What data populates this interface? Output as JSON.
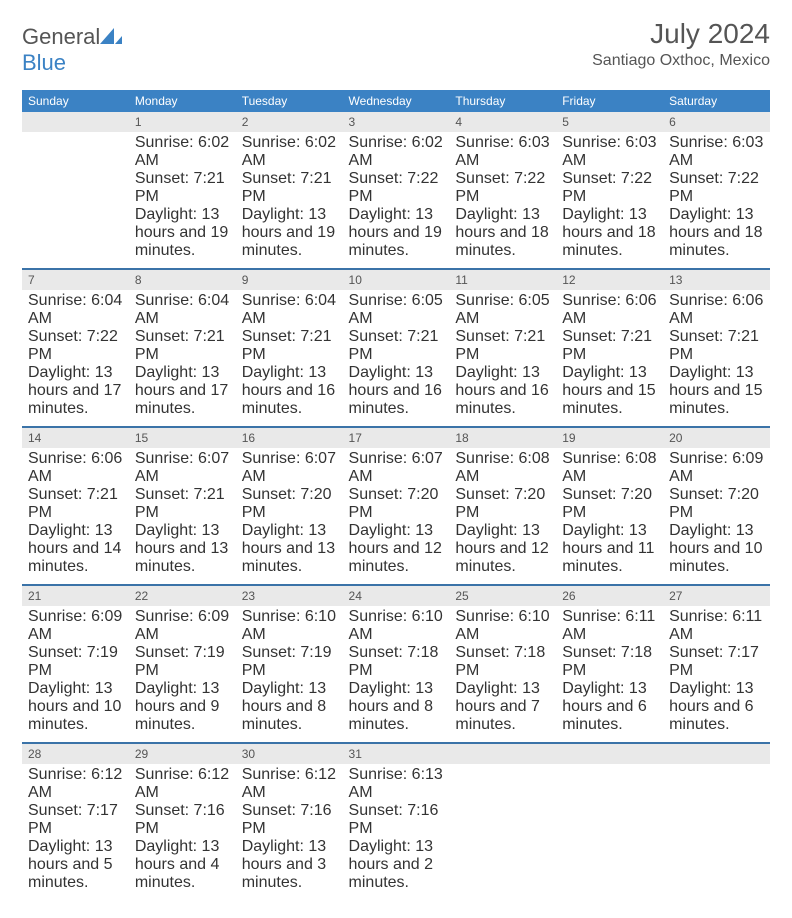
{
  "brand": {
    "name_a": "General",
    "name_b": "Blue"
  },
  "title": "July 2024",
  "location": "Santiago Oxthoc, Mexico",
  "colors": {
    "header_bg": "#3b82c4",
    "row_border": "#3b73a8",
    "daynum_bg": "#e9e9e9",
    "text": "#444"
  },
  "dow": [
    "Sunday",
    "Monday",
    "Tuesday",
    "Wednesday",
    "Thursday",
    "Friday",
    "Saturday"
  ],
  "weeks": [
    [
      null,
      {
        "n": "1",
        "sr": "6:02 AM",
        "ss": "7:21 PM",
        "dl": "13 hours and 19 minutes."
      },
      {
        "n": "2",
        "sr": "6:02 AM",
        "ss": "7:21 PM",
        "dl": "13 hours and 19 minutes."
      },
      {
        "n": "3",
        "sr": "6:02 AM",
        "ss": "7:22 PM",
        "dl": "13 hours and 19 minutes."
      },
      {
        "n": "4",
        "sr": "6:03 AM",
        "ss": "7:22 PM",
        "dl": "13 hours and 18 minutes."
      },
      {
        "n": "5",
        "sr": "6:03 AM",
        "ss": "7:22 PM",
        "dl": "13 hours and 18 minutes."
      },
      {
        "n": "6",
        "sr": "6:03 AM",
        "ss": "7:22 PM",
        "dl": "13 hours and 18 minutes."
      }
    ],
    [
      {
        "n": "7",
        "sr": "6:04 AM",
        "ss": "7:22 PM",
        "dl": "13 hours and 17 minutes."
      },
      {
        "n": "8",
        "sr": "6:04 AM",
        "ss": "7:21 PM",
        "dl": "13 hours and 17 minutes."
      },
      {
        "n": "9",
        "sr": "6:04 AM",
        "ss": "7:21 PM",
        "dl": "13 hours and 16 minutes."
      },
      {
        "n": "10",
        "sr": "6:05 AM",
        "ss": "7:21 PM",
        "dl": "13 hours and 16 minutes."
      },
      {
        "n": "11",
        "sr": "6:05 AM",
        "ss": "7:21 PM",
        "dl": "13 hours and 16 minutes."
      },
      {
        "n": "12",
        "sr": "6:06 AM",
        "ss": "7:21 PM",
        "dl": "13 hours and 15 minutes."
      },
      {
        "n": "13",
        "sr": "6:06 AM",
        "ss": "7:21 PM",
        "dl": "13 hours and 15 minutes."
      }
    ],
    [
      {
        "n": "14",
        "sr": "6:06 AM",
        "ss": "7:21 PM",
        "dl": "13 hours and 14 minutes."
      },
      {
        "n": "15",
        "sr": "6:07 AM",
        "ss": "7:21 PM",
        "dl": "13 hours and 13 minutes."
      },
      {
        "n": "16",
        "sr": "6:07 AM",
        "ss": "7:20 PM",
        "dl": "13 hours and 13 minutes."
      },
      {
        "n": "17",
        "sr": "6:07 AM",
        "ss": "7:20 PM",
        "dl": "13 hours and 12 minutes."
      },
      {
        "n": "18",
        "sr": "6:08 AM",
        "ss": "7:20 PM",
        "dl": "13 hours and 12 minutes."
      },
      {
        "n": "19",
        "sr": "6:08 AM",
        "ss": "7:20 PM",
        "dl": "13 hours and 11 minutes."
      },
      {
        "n": "20",
        "sr": "6:09 AM",
        "ss": "7:20 PM",
        "dl": "13 hours and 10 minutes."
      }
    ],
    [
      {
        "n": "21",
        "sr": "6:09 AM",
        "ss": "7:19 PM",
        "dl": "13 hours and 10 minutes."
      },
      {
        "n": "22",
        "sr": "6:09 AM",
        "ss": "7:19 PM",
        "dl": "13 hours and 9 minutes."
      },
      {
        "n": "23",
        "sr": "6:10 AM",
        "ss": "7:19 PM",
        "dl": "13 hours and 8 minutes."
      },
      {
        "n": "24",
        "sr": "6:10 AM",
        "ss": "7:18 PM",
        "dl": "13 hours and 8 minutes."
      },
      {
        "n": "25",
        "sr": "6:10 AM",
        "ss": "7:18 PM",
        "dl": "13 hours and 7 minutes."
      },
      {
        "n": "26",
        "sr": "6:11 AM",
        "ss": "7:18 PM",
        "dl": "13 hours and 6 minutes."
      },
      {
        "n": "27",
        "sr": "6:11 AM",
        "ss": "7:17 PM",
        "dl": "13 hours and 6 minutes."
      }
    ],
    [
      {
        "n": "28",
        "sr": "6:12 AM",
        "ss": "7:17 PM",
        "dl": "13 hours and 5 minutes."
      },
      {
        "n": "29",
        "sr": "6:12 AM",
        "ss": "7:16 PM",
        "dl": "13 hours and 4 minutes."
      },
      {
        "n": "30",
        "sr": "6:12 AM",
        "ss": "7:16 PM",
        "dl": "13 hours and 3 minutes."
      },
      {
        "n": "31",
        "sr": "6:13 AM",
        "ss": "7:16 PM",
        "dl": "13 hours and 2 minutes."
      },
      null,
      null,
      null
    ]
  ],
  "labels": {
    "sunrise": "Sunrise:",
    "sunset": "Sunset:",
    "daylight": "Daylight:"
  }
}
